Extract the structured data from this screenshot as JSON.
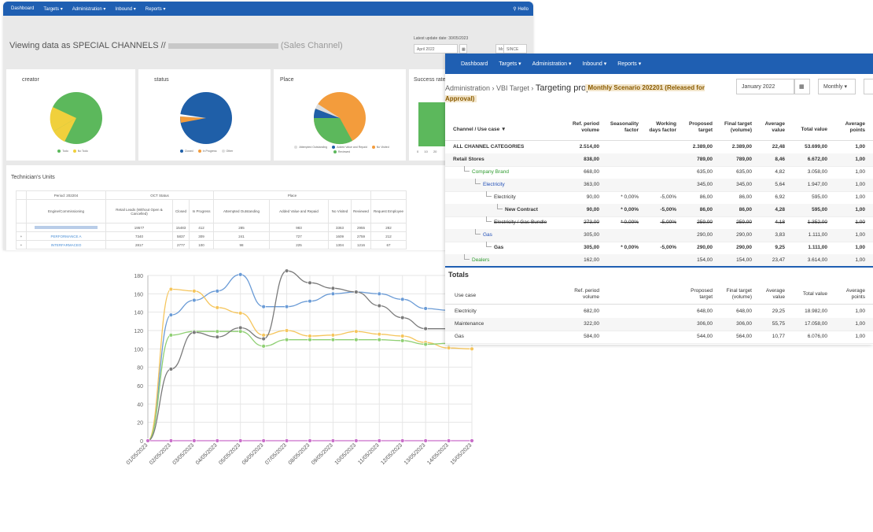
{
  "back": {
    "nav": [
      "Dashboard",
      "Targets ▾",
      "Administration ▾",
      "Inbound ▾",
      "Reports ▾"
    ],
    "user": "Hello",
    "viewing_prefix": "Viewing data as SPECIAL CHANNELS //",
    "viewing_suffix": "(Sales Channel)",
    "latest_update": "Latest update date: 30/05/2023",
    "period": "April 2022",
    "freq": "Monthly",
    "since": "SINCE",
    "cards": [
      {
        "title": "creator",
        "legend": [
          "Todo",
          "No Todo"
        ],
        "colors": [
          "#5cb85c",
          "#f0d03c"
        ]
      },
      {
        "title": "status",
        "legend": [
          "Closed",
          "In Progress",
          "Other"
        ],
        "colors": [
          "#1f5fa8",
          "#f39c3c",
          "#dddddd"
        ]
      },
      {
        "title": "Place",
        "legend": [
          "Attempted Outstanding",
          "Added Value and Repaid",
          "No Visited",
          "Reviewed"
        ],
        "colors": [
          "#1f5fa8",
          "#f39c3c",
          "#5cb85c",
          "#dddddd"
        ]
      },
      {
        "title": "Success rate",
        "bar_axis": [
          "0",
          "10",
          "20"
        ]
      }
    ],
    "units": {
      "title": "Technician's Units",
      "period": "Period: 202204",
      "oct_status": "OCT Status",
      "place": "Place",
      "sub_head": "Engine/Commissioning",
      "cols": [
        "Retail Leads (Without Open & Cancelled)",
        "Closed",
        "In Progress",
        "Attempted Outstanding",
        "Added Value and Repaid",
        "No Visited",
        "Reviewed",
        "Request Employee"
      ],
      "totals": [
        "19577",
        "15483",
        "412",
        "285",
        "983",
        "3363",
        "2955",
        "282"
      ],
      "rows": [
        {
          "name": "PERFORMANCE A",
          "values": [
            "7340",
            "5837",
            "309",
            "241",
            "727",
            "1609",
            "2759",
            "212"
          ]
        },
        {
          "name": "INTERFARMACEO",
          "values": [
            "2817",
            "2777",
            "100",
            "98",
            "225",
            "1304",
            "1216",
            "67"
          ]
        }
      ]
    }
  },
  "chart_data": {
    "type": "line",
    "x": [
      "01/05/2023",
      "02/05/2023",
      "03/05/2023",
      "04/05/2023",
      "05/05/2023",
      "06/05/2023",
      "07/05/2023",
      "08/05/2023",
      "09/05/2023",
      "10/05/2023",
      "11/05/2023",
      "12/05/2023",
      "13/05/2023",
      "14/05/2023",
      "15/05/2023"
    ],
    "ylim": [
      0,
      180
    ],
    "yticks": [
      "0",
      "20",
      "40",
      "60",
      "80",
      "100",
      "120",
      "140",
      "160",
      "180"
    ],
    "series": [
      {
        "color": "#6a9bd6",
        "values": [
          0,
          137,
          153,
          163,
          181,
          146,
          146,
          152,
          160,
          162,
          160,
          154,
          144,
          142,
          139
        ]
      },
      {
        "color": "#f5c55c",
        "values": [
          0,
          165,
          163,
          145,
          139,
          115,
          120,
          114,
          115,
          119,
          116,
          114,
          107,
          101,
          100
        ]
      },
      {
        "color": "#8fcf73",
        "values": [
          0,
          115,
          119,
          119,
          119,
          103,
          110,
          110,
          110,
          110,
          110,
          109,
          105,
          106,
          106
        ]
      },
      {
        "color": "#7a7a7a",
        "values": [
          0,
          78,
          118,
          113,
          123,
          111,
          185,
          172,
          166,
          162,
          147,
          134,
          122,
          122,
          126
        ]
      },
      {
        "color": "#c96ec9",
        "values": [
          0,
          0,
          0,
          0,
          0,
          0,
          0,
          0,
          0,
          0,
          0,
          0,
          0,
          0,
          0
        ]
      }
    ]
  },
  "front": {
    "nav": [
      "Dashboard",
      "Targets ▾",
      "Administration ▾",
      "Inbound ▾",
      "Reports ▾"
    ],
    "crumb": "Administration › VBI Target ›",
    "title": "Targeting proposals",
    "scenario": "Monthly Scenario 202201 (Released for Approval)",
    "month": "January 2022",
    "freq": "Monthly ▾",
    "headers": [
      "Channel / Use case ▼",
      "Ref. period volume",
      "Seasonality factor",
      "Working days factor",
      "Proposed target",
      "Final target (volume)",
      "Average value",
      "Total value",
      "Average points"
    ],
    "rows": [
      {
        "label": "ALL CHANNEL CATEGORIES",
        "indent": 0,
        "style": "bold",
        "vals": [
          "2.514,00",
          "",
          "",
          "2.389,00",
          "2.389,00",
          "22,48",
          "53.699,00",
          "1,00"
        ]
      },
      {
        "label": "Retail Stores",
        "indent": 0,
        "style": "bold",
        "vals": [
          "838,00",
          "",
          "",
          "789,00",
          "789,00",
          "8,46",
          "6.672,00",
          "1,00"
        ]
      },
      {
        "label": "Company Brand",
        "indent": 1,
        "style": "green",
        "vals": [
          "668,00",
          "",
          "",
          "635,00",
          "635,00",
          "4,82",
          "3.058,00",
          "1,00"
        ]
      },
      {
        "label": "Electricity",
        "indent": 2,
        "style": "blue",
        "vals": [
          "363,00",
          "",
          "",
          "345,00",
          "345,00",
          "5,64",
          "1.947,00",
          "1,00"
        ]
      },
      {
        "label": "Electricity",
        "indent": 3,
        "style": "plain",
        "vals": [
          "90,00",
          "* 0,00%",
          "-5,00%",
          "86,00",
          "86,00",
          "6,92",
          "595,00",
          "1,00"
        ]
      },
      {
        "label": "New Contract",
        "indent": 4,
        "style": "bold",
        "vals": [
          "90,00",
          "* 0,00%",
          "-5,00%",
          "86,00",
          "86,00",
          "4,28",
          "595,00",
          "1,00"
        ]
      },
      {
        "label": "Electricity / Gas Bundle",
        "indent": 3,
        "style": "strike",
        "vals": [
          "273,00",
          "* 0,00%",
          "-5,00%",
          "259,00",
          "259,00",
          "4,18",
          "1.352,00",
          "1,00"
        ]
      },
      {
        "label": "Gas",
        "indent": 2,
        "style": "blue",
        "vals": [
          "305,00",
          "",
          "",
          "290,00",
          "290,00",
          "3,83",
          "1.111,00",
          "1,00"
        ]
      },
      {
        "label": "Gas",
        "indent": 3,
        "style": "bold",
        "vals": [
          "305,00",
          "* 0,00%",
          "-5,00%",
          "290,00",
          "290,00",
          "9,25",
          "1.111,00",
          "1,00"
        ]
      },
      {
        "label": "Dealers",
        "indent": 1,
        "style": "green",
        "vals": [
          "162,00",
          "",
          "",
          "154,00",
          "154,00",
          "23,47",
          "3.614,00",
          "1,00"
        ]
      }
    ],
    "totals_title": "Totals",
    "totals_headers": [
      "Use case",
      "Ref. period volume",
      "Proposed target",
      "Final target (volume)",
      "Average value",
      "Total value",
      "Average points"
    ],
    "totals_rows": [
      {
        "label": "Electricity",
        "vals": [
          "682,00",
          "648,00",
          "648,00",
          "29,25",
          "18.982,00",
          "1,00"
        ]
      },
      {
        "label": "Maintenance",
        "vals": [
          "322,00",
          "306,00",
          "306,00",
          "55,75",
          "17.058,00",
          "1,00"
        ]
      },
      {
        "label": "Gas",
        "vals": [
          "584,00",
          "544,00",
          "564,00",
          "10,77",
          "6.076,00",
          "1,00"
        ]
      }
    ]
  }
}
